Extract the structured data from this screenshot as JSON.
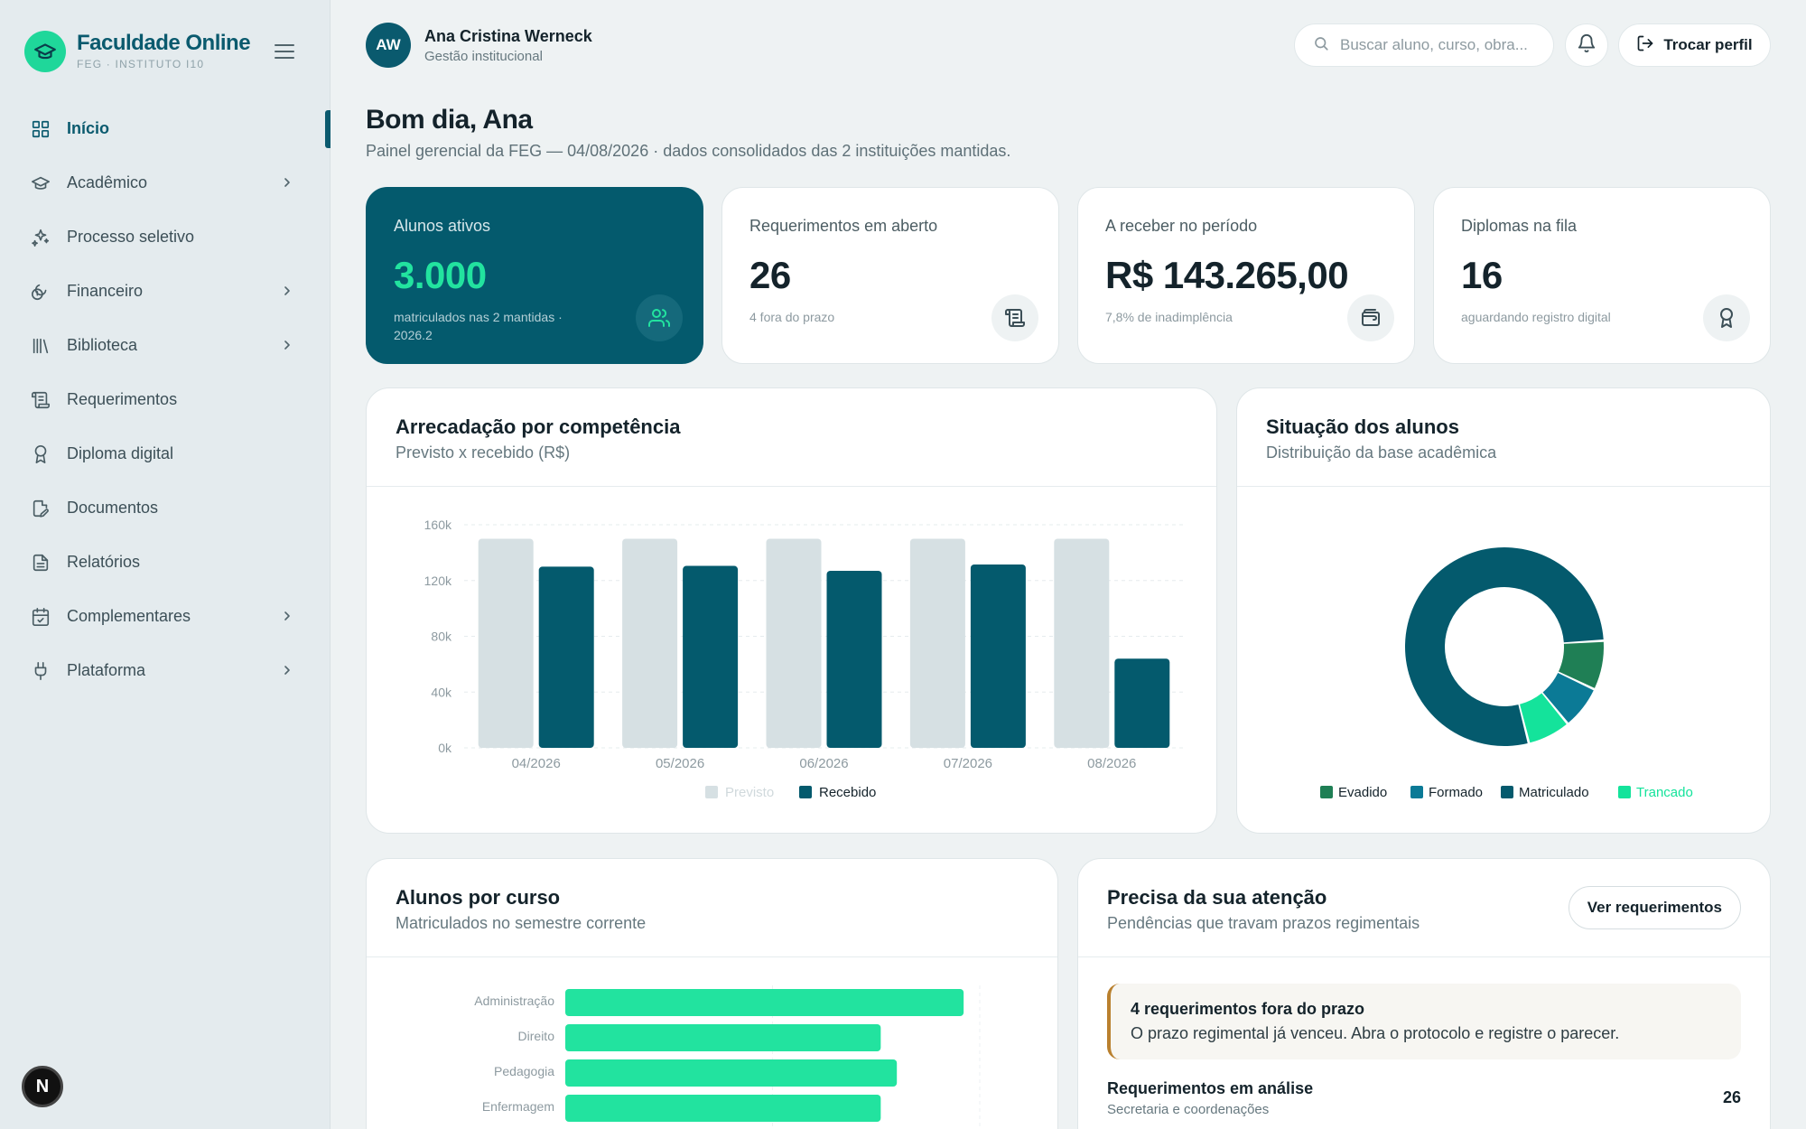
{
  "brand": {
    "name": "Faculdade Online",
    "sub": "FEG · INSTITUTO I10"
  },
  "nav": [
    {
      "label": "Início",
      "icon": "grid-icon",
      "active": true,
      "chevron": false
    },
    {
      "label": "Acadêmico",
      "icon": "graduation-cap-icon",
      "chevron": true
    },
    {
      "label": "Processo seletivo",
      "icon": "sparkles-icon",
      "chevron": false
    },
    {
      "label": "Financeiro",
      "icon": "coins-icon",
      "chevron": true
    },
    {
      "label": "Biblioteca",
      "icon": "library-icon",
      "chevron": true
    },
    {
      "label": "Requerimentos",
      "icon": "scroll-icon",
      "chevron": false
    },
    {
      "label": "Diploma digital",
      "icon": "award-icon",
      "chevron": false
    },
    {
      "label": "Documentos",
      "icon": "file-edit-icon",
      "chevron": false
    },
    {
      "label": "Relatórios",
      "icon": "file-text-icon",
      "chevron": false
    },
    {
      "label": "Complementares",
      "icon": "calendar-check-icon",
      "chevron": true
    },
    {
      "label": "Plataforma",
      "icon": "plug-icon",
      "chevron": true
    }
  ],
  "user": {
    "initials": "AW",
    "name": "Ana Cristina Werneck",
    "role": "Gestão institucional"
  },
  "search": {
    "placeholder": "Buscar aluno, curso, obra..."
  },
  "switch_profile": "Trocar perfil",
  "greeting": {
    "title": "Bom dia, Ana",
    "subtitle": "Painel gerencial da FEG — 04/08/2026 · dados consolidados das 2 instituições mantidas."
  },
  "kpis": [
    {
      "label": "Alunos ativos",
      "value": "3.000",
      "note": "matriculados nas 2 mantidas · 2026.2",
      "icon": "users-icon"
    },
    {
      "label": "Requerimentos em aberto",
      "value": "26",
      "note": "4 fora do prazo",
      "icon": "scroll-icon"
    },
    {
      "label": "A receber no período",
      "value": "R$ 143.265,00",
      "note": "7,8% de inadimplência",
      "icon": "wallet-icon"
    },
    {
      "label": "Diplomas na fila",
      "value": "16",
      "note": "aguardando registro digital",
      "icon": "award-icon"
    }
  ],
  "revenue_card": {
    "title": "Arrecadação por competência",
    "subtitle": "Previsto x recebido (R$)"
  },
  "status_card": {
    "title": "Situação dos alunos",
    "subtitle": "Distribuição da base acadêmica"
  },
  "courses_card": {
    "title": "Alunos por curso",
    "subtitle": "Matriculados no semestre corrente"
  },
  "attention_card": {
    "title": "Precisa da sua atenção",
    "subtitle": "Pendências que travam prazos regimentais",
    "button": "Ver requerimentos",
    "alert_title": "4 requerimentos fora do prazo",
    "alert_text": "O prazo regimental já venceu. Abra o protocolo e registre o parecer.",
    "row_title": "Requerimentos em análise",
    "row_sub": "Secretaria e coordenações",
    "row_value": "26"
  },
  "colors": {
    "primary": "#045a6d",
    "accent": "#22e39f",
    "previsto": "#d6e0e3",
    "evadido": "#1f7f55",
    "formado": "#0b7a96",
    "matriculado": "#045a6d",
    "trancado": "#14e39b"
  },
  "chart_data": [
    {
      "type": "bar",
      "categories": [
        "04/2026",
        "05/2026",
        "06/2026",
        "07/2026",
        "08/2026"
      ],
      "series": [
        {
          "name": "Previsto",
          "values": [
            150000,
            150000,
            150000,
            150000,
            150000
          ]
        },
        {
          "name": "Recebido",
          "values": [
            130000,
            130500,
            127000,
            131500,
            64000
          ]
        }
      ],
      "y_ticks": [
        "0k",
        "40k",
        "80k",
        "120k",
        "160k"
      ],
      "ylim": [
        0,
        160000
      ],
      "grid": true,
      "legend": "bottom"
    },
    {
      "type": "pie",
      "donut": true,
      "labels": [
        "Evadido",
        "Formado",
        "Matriculado",
        "Trancado"
      ],
      "values": [
        8,
        7,
        78,
        7
      ],
      "legend": "bottom"
    },
    {
      "type": "bar",
      "orientation": "horizontal",
      "categories": [
        "Administração",
        "Direito",
        "Pedagogia",
        "Enfermagem"
      ],
      "values": [
        865,
        685,
        720,
        685
      ],
      "xlim": [
        0,
        1000
      ]
    }
  ]
}
